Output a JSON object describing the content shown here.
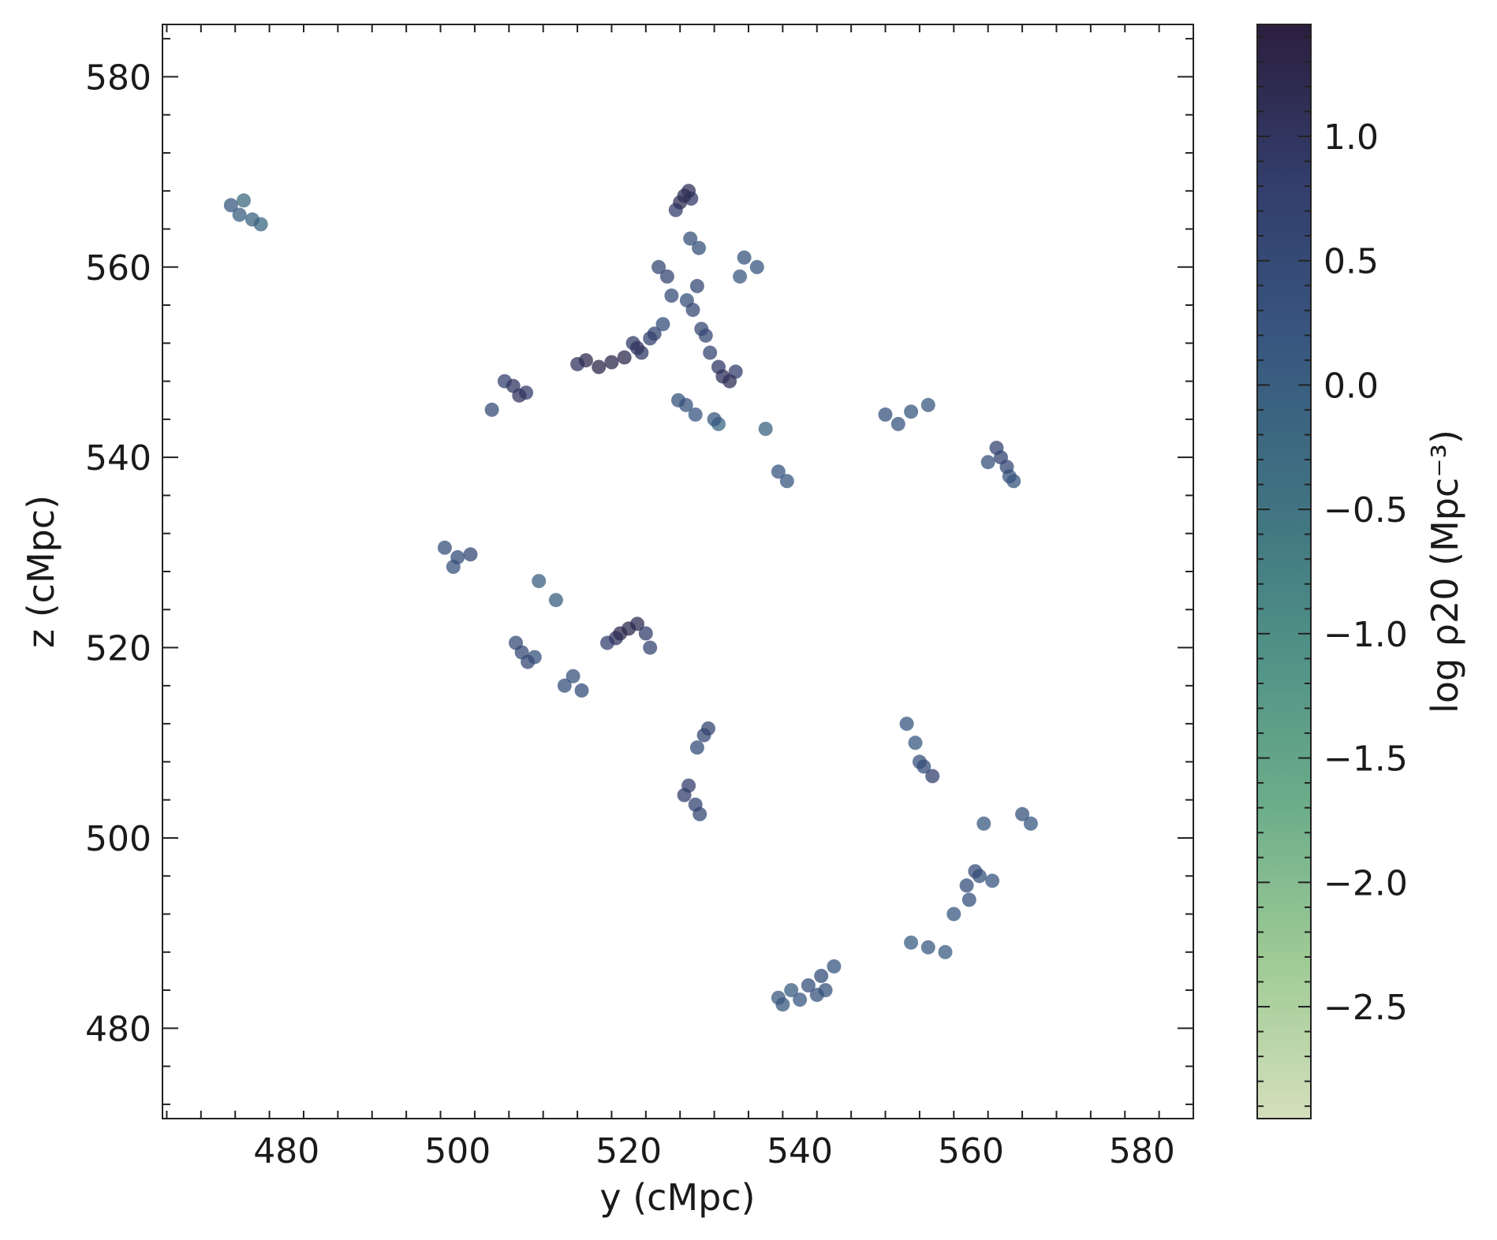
{
  "chart_data": {
    "type": "scatter",
    "title": "",
    "xlabel": "y (cMpc)",
    "ylabel": "z (cMpc)",
    "colorbar_label": "log ρ20 (Mpc⁻³)",
    "xlim": [
      465.5,
      586
    ],
    "ylim": [
      470.5,
      585.5
    ],
    "clim": [
      -2.95,
      1.45
    ],
    "x_ticks": [
      480,
      500,
      520,
      540,
      560,
      580
    ],
    "x_tick_labels": [
      "480",
      "500",
      "520",
      "540",
      "560",
      "580"
    ],
    "y_ticks": [
      480,
      500,
      520,
      540,
      560,
      580
    ],
    "y_tick_labels": [
      "480",
      "500",
      "520",
      "540",
      "560",
      "580"
    ],
    "c_ticks": [
      -2.5,
      -2.0,
      -1.5,
      -1.0,
      -0.5,
      0.0,
      0.5,
      1.0
    ],
    "c_tick_labels": [
      "−2.5",
      "−2.0",
      "−1.5",
      "−1.0",
      "−0.5",
      "0.0",
      "0.5",
      "1.0"
    ],
    "colormap": [
      "#d4dfbb",
      "#9fcb95",
      "#6cad8a",
      "#4f9186",
      "#3f7181",
      "#385680",
      "#333d6b",
      "#2c1f3f"
    ],
    "grid": false,
    "legend": "none",
    "marker_alpha": 0.75,
    "series": [
      {
        "x": [
          526.5,
          526.0,
          527.0,
          525.5,
          527.3,
          524.5,
          523.5,
          528.0,
          525.0,
          526.8,
          527.5,
          524.0,
          522.5,
          521.0,
          519.5,
          518.0,
          516.5,
          515.0,
          514.0,
          520.5,
          521.5,
          523.0,
          531.0,
          531.8,
          530.5,
          529.5,
          532.5,
          528.5,
          529.0,
          527.2,
          528.2,
          526.7,
          527.8,
          525.8,
          530.0,
          533.5,
          535.0,
          533.0,
          506.5,
          507.2,
          505.5,
          508.0,
          504.0,
          500.0,
          498.5,
          499.5,
          501.5,
          507.5,
          508.2,
          506.8,
          509.0,
          512.5,
          514.5,
          513.5,
          519.0,
          520.0,
          521.0,
          518.5,
          522.0,
          522.5,
          517.5,
          528.8,
          529.3,
          528.0,
          527.0,
          526.5,
          527.8,
          528.3,
          541.0,
          542.5,
          543.0,
          544.0,
          542.0,
          540.0,
          538.0,
          537.5,
          539.0,
          537.5,
          538.5,
          550.0,
          551.5,
          553.0,
          555.0,
          563.0,
          563.5,
          564.2,
          562.0,
          565.0,
          564.5,
          552.5,
          553.5,
          554.0,
          555.5,
          554.5,
          560.5,
          559.5,
          559.8,
          558.0,
          561.0,
          562.5,
          557.0,
          555.0,
          553.0,
          566.0,
          567.0,
          561.5,
          473.5,
          474.5,
          476.0,
          477.0,
          475.0,
          536.0,
          530.5,
          509.5,
          511.5
        ],
        "y": [
          567.5,
          566.8,
          568.0,
          566.0,
          567.2,
          559.0,
          560.0,
          558.0,
          557.0,
          556.5,
          555.5,
          554.0,
          552.5,
          551.5,
          550.5,
          550.0,
          549.5,
          550.2,
          549.8,
          552.0,
          551.0,
          553.0,
          548.5,
          548.0,
          549.5,
          551.0,
          549.0,
          553.5,
          552.8,
          563.0,
          562.0,
          545.5,
          544.5,
          546.0,
          544.0,
          561.0,
          560.0,
          559.0,
          547.5,
          546.5,
          548.0,
          546.8,
          545.0,
          529.5,
          530.5,
          528.5,
          529.8,
          519.5,
          518.5,
          520.5,
          519.0,
          516.0,
          515.5,
          517.0,
          521.5,
          522.0,
          522.5,
          521.0,
          521.5,
          520.0,
          520.5,
          510.8,
          511.5,
          509.5,
          505.5,
          504.5,
          503.5,
          502.5,
          484.5,
          485.5,
          484.0,
          486.5,
          483.5,
          483.0,
          482.5,
          483.2,
          484.0,
          538.5,
          537.5,
          544.5,
          543.5,
          544.8,
          545.5,
          541.0,
          540.0,
          539.0,
          539.5,
          537.5,
          538.0,
          512.0,
          510.0,
          508.0,
          506.5,
          507.5,
          496.5,
          495.0,
          493.5,
          492.0,
          496.0,
          495.5,
          488.0,
          488.5,
          489.0,
          502.5,
          501.5,
          501.5,
          566.5,
          565.5,
          565.0,
          564.5,
          567.0,
          543.0,
          543.5,
          527.0,
          525.0
        ],
        "c": [
          1.15,
          1.1,
          1.05,
          0.75,
          0.9,
          0.6,
          0.5,
          0.55,
          0.45,
          0.35,
          0.5,
          0.4,
          0.7,
          1.0,
          1.2,
          1.25,
          1.3,
          1.2,
          1.0,
          0.85,
          0.9,
          0.65,
          1.05,
          1.1,
          0.9,
          0.6,
          0.8,
          0.55,
          0.5,
          0.35,
          0.3,
          0.25,
          0.2,
          0.3,
          0.15,
          0.25,
          0.2,
          0.1,
          0.95,
          1.0,
          0.7,
          0.85,
          0.45,
          0.4,
          0.35,
          0.3,
          0.5,
          0.55,
          0.5,
          0.45,
          0.3,
          0.35,
          0.4,
          0.3,
          1.2,
          1.25,
          1.15,
          1.0,
          0.8,
          0.6,
          0.7,
          0.55,
          0.6,
          0.4,
          0.75,
          0.8,
          0.65,
          0.5,
          0.35,
          0.4,
          0.3,
          0.2,
          0.25,
          0.2,
          0.15,
          0.1,
          0.05,
          0.2,
          0.15,
          0.3,
          0.2,
          0.15,
          0.1,
          0.6,
          0.65,
          0.5,
          0.3,
          0.2,
          0.25,
          0.2,
          0.15,
          0.3,
          0.7,
          0.4,
          0.45,
          0.4,
          0.35,
          0.15,
          0.3,
          0.2,
          0.05,
          0.1,
          0.0,
          0.3,
          0.15,
          0.1,
          0.1,
          0.0,
          -0.1,
          -0.2,
          -0.3,
          -0.1,
          -0.2,
          -0.05,
          0.0
        ]
      }
    ]
  }
}
